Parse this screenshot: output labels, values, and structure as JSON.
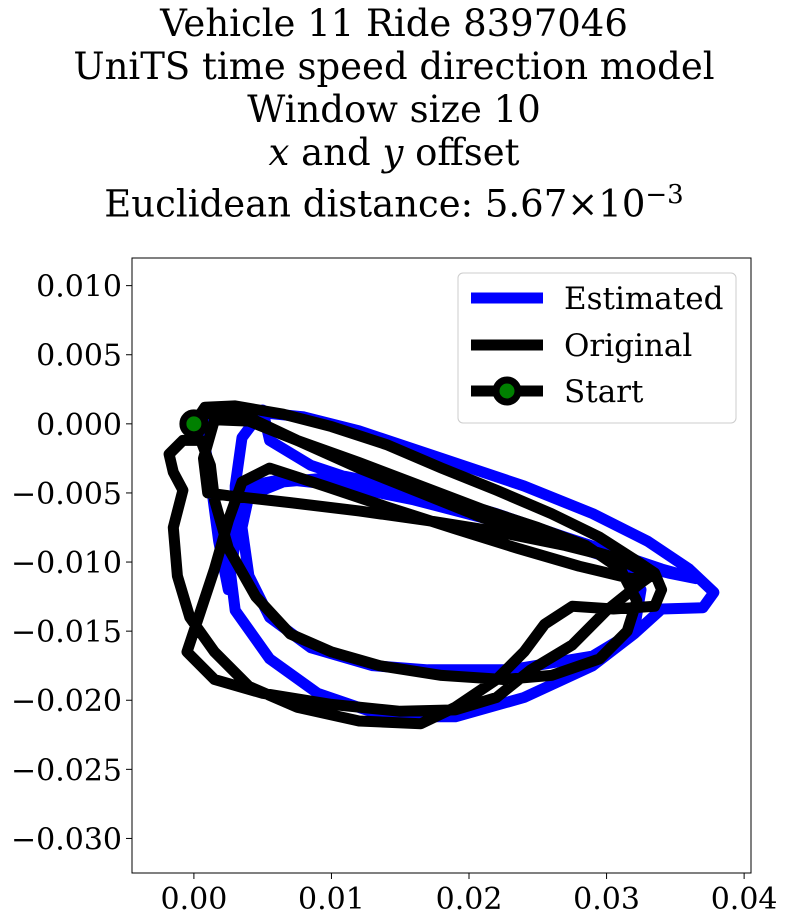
{
  "chart_data": {
    "type": "line",
    "title_lines": [
      "Vehicle 11 Ride 8397046",
      "UniTS time speed direction model",
      "Window size 10",
      "and",
      "offset",
      "Euclidean distance:"
    ],
    "title_math": {
      "x_symbol": "x",
      "y_symbol": "y",
      "distance_mantissa": "5.67",
      "times_sign": "×",
      "distance_base": "10",
      "distance_exponent": "−3"
    },
    "xlim": [
      -0.0045,
      0.0405
    ],
    "ylim": [
      -0.0325,
      0.012
    ],
    "x_ticks": [
      0.0,
      0.01,
      0.02,
      0.03,
      0.04
    ],
    "x_tick_labels": [
      "0.00",
      "0.01",
      "0.02",
      "0.03",
      "0.04"
    ],
    "y_ticks": [
      0.01,
      0.005,
      0.0,
      -0.005,
      -0.01,
      -0.015,
      -0.02,
      -0.025,
      -0.03
    ],
    "y_tick_labels": [
      "0.010",
      "0.005",
      "0.000",
      "−0.005",
      "−0.010",
      "−0.015",
      "−0.020",
      "−0.025",
      "−0.030"
    ],
    "grid": false,
    "legend_position": "top-right",
    "series": [
      {
        "name": "Estimated",
        "color": "#0000ff",
        "points": [
          [
            0.0,
            0.0
          ],
          [
            0.0025,
            0.0007
          ],
          [
            0.005,
            0.0008
          ],
          [
            0.008,
            0.0005
          ],
          [
            0.012,
            -0.0005
          ],
          [
            0.018,
            -0.0025
          ],
          [
            0.024,
            -0.0045
          ],
          [
            0.029,
            -0.0065
          ],
          [
            0.033,
            -0.0085
          ],
          [
            0.036,
            -0.0105
          ],
          [
            0.0378,
            -0.0122
          ],
          [
            0.037,
            -0.0133
          ],
          [
            0.034,
            -0.0134
          ],
          [
            0.032,
            -0.0152
          ],
          [
            0.029,
            -0.0175
          ],
          [
            0.024,
            -0.0198
          ],
          [
            0.019,
            -0.0212
          ],
          [
            0.014,
            -0.0212
          ],
          [
            0.009,
            -0.0195
          ],
          [
            0.0055,
            -0.017
          ],
          [
            0.003,
            -0.0135
          ],
          [
            0.0025,
            -0.0095
          ],
          [
            0.003,
            -0.0065
          ],
          [
            0.004,
            -0.0045
          ],
          [
            0.0065,
            -0.004
          ],
          [
            0.011,
            -0.0045
          ],
          [
            0.016,
            -0.0055
          ],
          [
            0.021,
            -0.0068
          ],
          [
            0.026,
            -0.0082
          ],
          [
            0.0305,
            -0.0095
          ],
          [
            0.0325,
            -0.012
          ],
          [
            0.032,
            -0.015
          ],
          [
            0.029,
            -0.0168
          ],
          [
            0.023,
            -0.0178
          ],
          [
            0.017,
            -0.0178
          ],
          [
            0.013,
            -0.0175
          ],
          [
            0.0085,
            -0.0162
          ],
          [
            0.0055,
            -0.014
          ],
          [
            0.004,
            -0.011
          ],
          [
            0.0035,
            -0.0075
          ],
          [
            0.004,
            -0.0052
          ],
          [
            0.0065,
            -0.0042
          ],
          [
            0.011,
            -0.0038
          ],
          [
            0.016,
            -0.0048
          ],
          [
            0.022,
            -0.0065
          ],
          [
            0.027,
            -0.0082
          ],
          [
            0.031,
            -0.0095
          ],
          [
            0.034,
            -0.0105
          ],
          [
            0.0365,
            -0.0112
          ],
          [
            0.0345,
            -0.0108
          ],
          [
            0.0305,
            -0.0098
          ],
          [
            0.025,
            -0.008
          ],
          [
            0.019,
            -0.0062
          ],
          [
            0.013,
            -0.0045
          ],
          [
            0.0085,
            -0.003
          ],
          [
            0.0055,
            -0.0012
          ],
          [
            0.005,
            0.001
          ],
          [
            0.0035,
            -0.001
          ],
          [
            0.003,
            -0.0045
          ],
          [
            0.003,
            -0.0085
          ],
          [
            0.0025,
            -0.012
          ],
          [
            0.0018,
            -0.0085
          ],
          [
            0.0012,
            -0.004
          ],
          [
            0.0008,
            -0.0015
          ],
          [
            0.0005,
            -0.0005
          ]
        ]
      },
      {
        "name": "Original",
        "color": "#000000",
        "points": [
          [
            0.0,
            0.0
          ],
          [
            0.0008,
            0.0012
          ],
          [
            0.003,
            0.0013
          ],
          [
            0.0065,
            0.0007
          ],
          [
            0.01,
            -0.0002
          ],
          [
            0.014,
            -0.0015
          ],
          [
            0.018,
            -0.0032
          ],
          [
            0.022,
            -0.0048
          ],
          [
            0.026,
            -0.0065
          ],
          [
            0.0295,
            -0.0082
          ],
          [
            0.032,
            -0.0098
          ],
          [
            0.0335,
            -0.0108
          ],
          [
            0.034,
            -0.012
          ],
          [
            0.0335,
            -0.0132
          ],
          [
            0.0305,
            -0.0134
          ],
          [
            0.0275,
            -0.0132
          ],
          [
            0.0255,
            -0.0145
          ],
          [
            0.024,
            -0.0165
          ],
          [
            0.022,
            -0.0185
          ],
          [
            0.019,
            -0.0205
          ],
          [
            0.0165,
            -0.0217
          ],
          [
            0.012,
            -0.0215
          ],
          [
            0.0075,
            -0.0205
          ],
          [
            0.004,
            -0.019
          ],
          [
            0.0015,
            -0.0165
          ],
          [
            -0.0003,
            -0.014
          ],
          [
            -0.0012,
            -0.011
          ],
          [
            -0.0015,
            -0.0075
          ],
          [
            -0.0008,
            -0.0048
          ],
          [
            -0.0015,
            -0.0035
          ],
          [
            -0.0018,
            -0.0022
          ],
          [
            -0.0008,
            -0.0012
          ],
          [
            0.0005,
            -0.0012
          ],
          [
            0.0012,
            -0.003
          ],
          [
            0.0015,
            -0.0055
          ],
          [
            0.0025,
            -0.009
          ],
          [
            0.0045,
            -0.0125
          ],
          [
            0.007,
            -0.0152
          ],
          [
            0.01,
            -0.0165
          ],
          [
            0.0135,
            -0.0175
          ],
          [
            0.018,
            -0.0182
          ],
          [
            0.0225,
            -0.0185
          ],
          [
            0.026,
            -0.0182
          ],
          [
            0.0295,
            -0.017
          ],
          [
            0.0315,
            -0.015
          ],
          [
            0.0322,
            -0.0128
          ],
          [
            0.031,
            -0.0105
          ],
          [
            0.0285,
            -0.0088
          ],
          [
            0.025,
            -0.0075
          ],
          [
            0.021,
            -0.0062
          ],
          [
            0.0165,
            -0.0045
          ],
          [
            0.012,
            -0.0028
          ],
          [
            0.0075,
            -0.0012
          ],
          [
            0.004,
            0.0002
          ],
          [
            0.0015,
            0.0003
          ],
          [
            0.0007,
            -0.0025
          ],
          [
            0.001,
            -0.005
          ],
          [
            0.0025,
            -0.0052
          ],
          [
            0.007,
            -0.0057
          ],
          [
            0.012,
            -0.0063
          ],
          [
            0.017,
            -0.007
          ],
          [
            0.022,
            -0.0078
          ],
          [
            0.027,
            -0.0088
          ],
          [
            0.031,
            -0.0098
          ],
          [
            0.0333,
            -0.011
          ],
          [
            0.0318,
            -0.0112
          ],
          [
            0.028,
            -0.0103
          ],
          [
            0.0235,
            -0.009
          ],
          [
            0.019,
            -0.0076
          ],
          [
            0.014,
            -0.006
          ],
          [
            0.0095,
            -0.0045
          ],
          [
            0.0055,
            -0.0032
          ],
          [
            0.0035,
            -0.0042
          ],
          [
            0.0025,
            -0.007
          ],
          [
            0.0015,
            -0.0105
          ],
          [
            0.0005,
            -0.0135
          ],
          [
            -0.0005,
            -0.0165
          ],
          [
            0.0015,
            -0.0185
          ],
          [
            0.005,
            -0.0195
          ],
          [
            0.01,
            -0.0203
          ],
          [
            0.015,
            -0.0208
          ],
          [
            0.019,
            -0.0207
          ],
          [
            0.022,
            -0.0198
          ],
          [
            0.0245,
            -0.0178
          ],
          [
            0.0275,
            -0.016
          ],
          [
            0.03,
            -0.0135
          ],
          [
            0.0325,
            -0.0115
          ],
          [
            0.0332,
            -0.011
          ],
          [
            0.0325,
            -0.0105
          ],
          [
            0.03,
            -0.0095
          ],
          [
            0.0255,
            -0.0082
          ],
          [
            0.021,
            -0.0068
          ],
          [
            0.0165,
            -0.005
          ],
          [
            0.012,
            -0.0032
          ],
          [
            0.0075,
            -0.0012
          ],
          [
            0.0035,
            0.0007
          ],
          [
            0.001,
            0.0008
          ],
          [
            0.0,
            0.0
          ]
        ]
      }
    ],
    "start_marker": {
      "label": "Start",
      "x": 0.0,
      "y": 0.0,
      "line_color": "#000000",
      "face_color": "#008000"
    },
    "legend_items": [
      "Estimated",
      "Original",
      "Start"
    ]
  }
}
